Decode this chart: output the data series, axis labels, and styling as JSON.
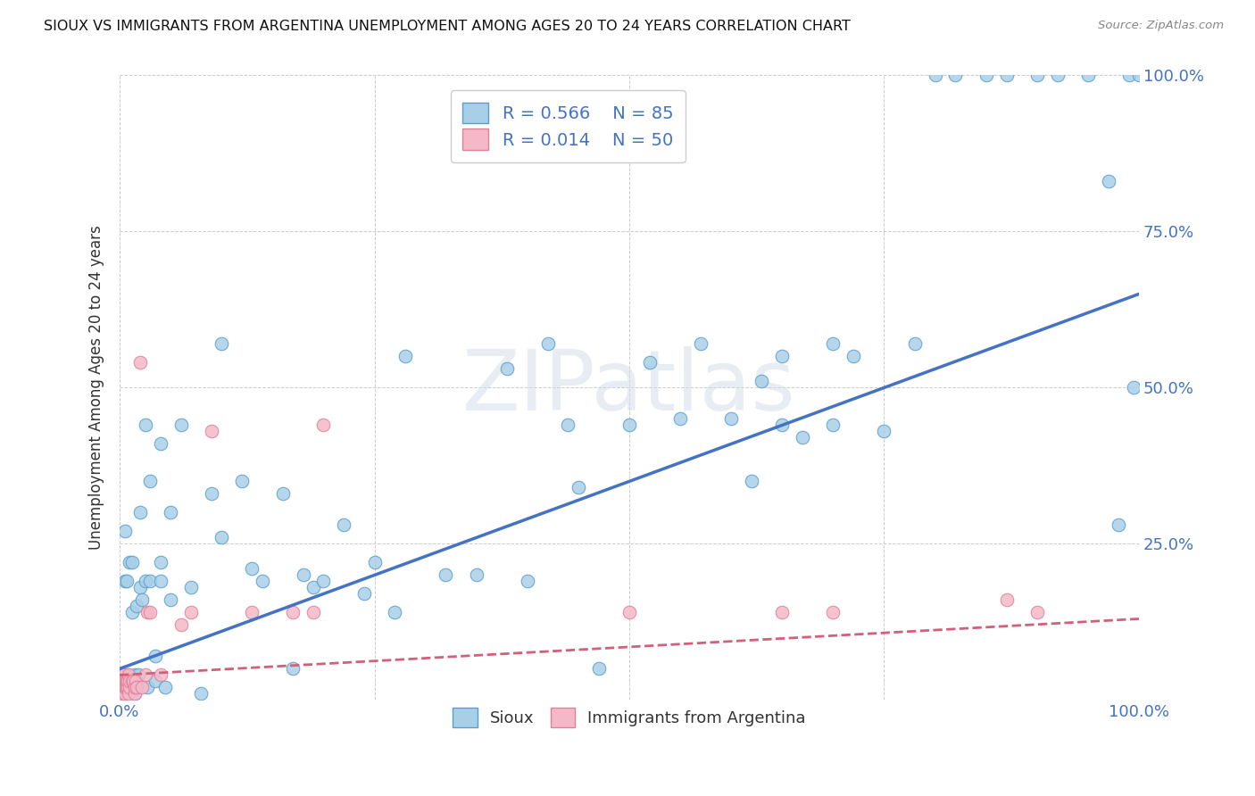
{
  "title": "SIOUX VS IMMIGRANTS FROM ARGENTINA UNEMPLOYMENT AMONG AGES 20 TO 24 YEARS CORRELATION CHART",
  "source": "Source: ZipAtlas.com",
  "ylabel": "Unemployment Among Ages 20 to 24 years",
  "ytick_labels": [
    "",
    "25.0%",
    "50.0%",
    "75.0%",
    "100.0%"
  ],
  "ytick_positions": [
    0.0,
    0.25,
    0.5,
    0.75,
    1.0
  ],
  "xtick_labels": [
    "0.0%",
    "",
    "",
    "",
    "100.0%"
  ],
  "xtick_positions": [
    0.0,
    0.25,
    0.5,
    0.75,
    1.0
  ],
  "legend_label1": "R = 0.566    N = 85",
  "legend_label2": "R = 0.014    N = 50",
  "scatter_color1": "#a8cfe8",
  "scatter_color2": "#f4b8c8",
  "scatter_edgecolor1": "#5b9ec9",
  "scatter_edgecolor2": "#e0809a",
  "line_color1": "#4472c4",
  "line_color2": "#d45f7a",
  "watermark": "ZIPatlas",
  "legend_bottom_label1": "Sioux",
  "legend_bottom_label2": "Immigrants from Argentina",
  "sioux_x": [
    0.005,
    0.005,
    0.007,
    0.008,
    0.01,
    0.01,
    0.012,
    0.012,
    0.013,
    0.014,
    0.015,
    0.015,
    0.016,
    0.017,
    0.018,
    0.02,
    0.02,
    0.022,
    0.025,
    0.025,
    0.027,
    0.03,
    0.03,
    0.035,
    0.035,
    0.04,
    0.04,
    0.04,
    0.045,
    0.05,
    0.05,
    0.06,
    0.07,
    0.08,
    0.09,
    0.1,
    0.1,
    0.12,
    0.13,
    0.14,
    0.16,
    0.17,
    0.18,
    0.19,
    0.2,
    0.22,
    0.24,
    0.25,
    0.27,
    0.28,
    0.32,
    0.35,
    0.38,
    0.4,
    0.42,
    0.44,
    0.45,
    0.47,
    0.5,
    0.52,
    0.55,
    0.57,
    0.6,
    0.62,
    0.63,
    0.65,
    0.65,
    0.67,
    0.7,
    0.7,
    0.72,
    0.75,
    0.78,
    0.8,
    0.82,
    0.85,
    0.87,
    0.9,
    0.92,
    0.95,
    0.97,
    0.98,
    0.99,
    0.995,
    1.0
  ],
  "sioux_y": [
    0.19,
    0.27,
    0.19,
    0.04,
    0.02,
    0.22,
    0.14,
    0.22,
    0.03,
    0.02,
    0.01,
    0.04,
    0.02,
    0.15,
    0.04,
    0.18,
    0.3,
    0.16,
    0.19,
    0.44,
    0.02,
    0.19,
    0.35,
    0.07,
    0.03,
    0.22,
    0.19,
    0.41,
    0.02,
    0.3,
    0.16,
    0.44,
    0.18,
    0.01,
    0.33,
    0.57,
    0.26,
    0.35,
    0.21,
    0.19,
    0.33,
    0.05,
    0.2,
    0.18,
    0.19,
    0.28,
    0.17,
    0.22,
    0.14,
    0.55,
    0.2,
    0.2,
    0.53,
    0.19,
    0.57,
    0.44,
    0.34,
    0.05,
    0.44,
    0.54,
    0.45,
    0.57,
    0.45,
    0.35,
    0.51,
    0.44,
    0.55,
    0.42,
    0.57,
    0.44,
    0.55,
    0.43,
    0.57,
    1.0,
    1.0,
    1.0,
    1.0,
    1.0,
    1.0,
    1.0,
    0.83,
    0.28,
    1.0,
    0.5,
    1.0
  ],
  "arg_x": [
    0.001,
    0.001,
    0.002,
    0.002,
    0.002,
    0.003,
    0.003,
    0.003,
    0.003,
    0.004,
    0.004,
    0.004,
    0.004,
    0.005,
    0.005,
    0.005,
    0.006,
    0.006,
    0.007,
    0.007,
    0.008,
    0.008,
    0.009,
    0.009,
    0.01,
    0.01,
    0.012,
    0.013,
    0.015,
    0.015,
    0.016,
    0.017,
    0.02,
    0.022,
    0.025,
    0.027,
    0.03,
    0.04,
    0.06,
    0.07,
    0.09,
    0.13,
    0.17,
    0.19,
    0.2,
    0.5,
    0.65,
    0.7,
    0.87,
    0.9
  ],
  "arg_y": [
    0.02,
    0.03,
    0.02,
    0.02,
    0.03,
    0.01,
    0.02,
    0.03,
    0.04,
    0.02,
    0.02,
    0.03,
    0.04,
    0.01,
    0.02,
    0.03,
    0.02,
    0.03,
    0.02,
    0.03,
    0.02,
    0.03,
    0.01,
    0.04,
    0.02,
    0.03,
    0.03,
    0.03,
    0.01,
    0.02,
    0.03,
    0.02,
    0.54,
    0.02,
    0.04,
    0.14,
    0.14,
    0.04,
    0.12,
    0.14,
    0.43,
    0.14,
    0.14,
    0.14,
    0.44,
    0.14,
    0.14,
    0.14,
    0.16,
    0.14
  ],
  "sioux_line_x0": 0.0,
  "sioux_line_x1": 1.0,
  "sioux_line_y0": 0.05,
  "sioux_line_y1": 0.65,
  "arg_line_x0": 0.0,
  "arg_line_x1": 1.0,
  "arg_line_y0": 0.04,
  "arg_line_y1": 0.13,
  "xlim": [
    0.0,
    1.0
  ],
  "ylim": [
    0.0,
    1.0
  ],
  "background_color": "#ffffff",
  "grid_color": "#cccccc",
  "title_color": "#111111",
  "tick_color": "#4472c4",
  "source_color": "#888888"
}
